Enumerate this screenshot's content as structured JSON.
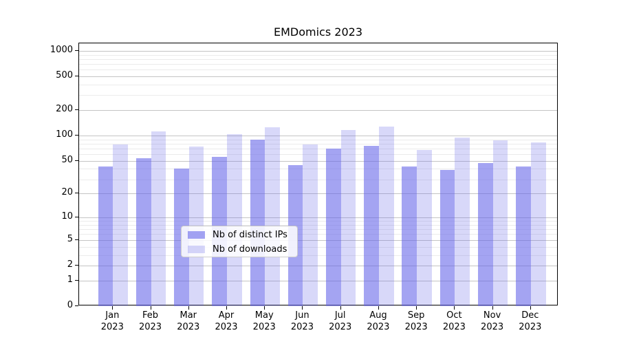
{
  "chart_data": {
    "type": "bar",
    "title": "EMDomics 2023",
    "xlabel": "",
    "ylabel": "",
    "categories": [
      "Jan",
      "Feb",
      "Mar",
      "Apr",
      "May",
      "Jun",
      "Jul",
      "Aug",
      "Sep",
      "Oct",
      "Nov",
      "Dec"
    ],
    "category_year": "2023",
    "series": [
      {
        "name": "Nb of distinct IPs",
        "color": "rgba(98,98,232,0.58)",
        "values": [
          43,
          54,
          40,
          56,
          89,
          44,
          70,
          76,
          43,
          39,
          47,
          43
        ]
      },
      {
        "name": "Nb of downloads",
        "color": "rgba(98,98,232,0.25)",
        "values": [
          79,
          112,
          74,
          103,
          126,
          79,
          117,
          127,
          67,
          95,
          87,
          83
        ]
      }
    ],
    "yscale": "log1p",
    "ylim": [
      0,
      1223
    ],
    "yticks": [
      0,
      1,
      2,
      5,
      10,
      20,
      50,
      100,
      200,
      500,
      1000
    ],
    "minor_yticks": [
      3,
      4,
      6,
      7,
      8,
      9,
      30,
      40,
      60,
      70,
      80,
      90,
      300,
      400,
      600,
      700,
      800,
      900
    ],
    "grid": "horizontal, major and minor",
    "legend_position": "bottom-center"
  },
  "colors": {
    "bar_ips": "#a4a4f2",
    "bar_downloads": "#d8d8f9",
    "grid_major": "#c4c4c4",
    "grid_minor": "#ebebeb",
    "axis": "#000000",
    "background": "#ffffff"
  }
}
